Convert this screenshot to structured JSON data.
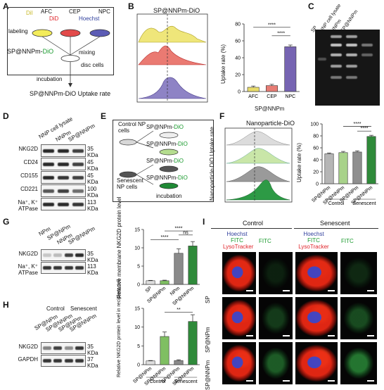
{
  "panels": {
    "A": "A",
    "B": "B",
    "C": "C",
    "D": "D",
    "E": "E",
    "F": "F",
    "G": "G",
    "H": "H",
    "I": "I"
  },
  "panelA": {
    "dyes": [
      "DiI",
      "AFC",
      "DiD",
      "CEP",
      "Hoechst",
      "NPC"
    ],
    "labeling": "labeling",
    "probe_prefix": "SP@NNPm-",
    "probe_suffix": "DiO",
    "mixing": "mixing",
    "disc": "disc cells",
    "incubation": "incubation",
    "result": "SP@NNPm-DiO Uptake rate",
    "colors": {
      "dii": "#d7c93a",
      "did": "#e0242a",
      "hoechst": "#2e3e9c",
      "dio": "#1a9a2e"
    }
  },
  "panelB": {
    "hist_title": "SP@NNPm-DiO",
    "stars": [
      "****",
      "****"
    ]
  },
  "chart_data": [
    {
      "type": "bar",
      "categories": [
        "AFC",
        "CEP",
        "NPC"
      ],
      "values": [
        5,
        7,
        53
      ],
      "errors": [
        1.5,
        1.5,
        2
      ],
      "ylabel": "Uptake rate (%)",
      "xlabel": "SP@NNPm",
      "ylim": [
        0,
        80
      ],
      "yticks": [
        0,
        20,
        40,
        60,
        80
      ],
      "colors": [
        "#e8dc6a",
        "#e77c74",
        "#7664b2"
      ]
    },
    {
      "type": "bar",
      "categories": [
        "SP@NPm",
        "SP@NNPm",
        "SP@NPm",
        "SP@NNPm"
      ],
      "values": [
        50,
        52,
        53,
        79
      ],
      "errors": [
        1.5,
        2,
        2,
        2
      ],
      "ylabel": "Uptake rate (%)",
      "groups": [
        "Control",
        "Senescent"
      ],
      "ylim": [
        0,
        100
      ],
      "yticks": [
        0,
        20,
        40,
        60,
        80,
        100
      ],
      "colors": [
        "#b5b5b5",
        "#a8d28a",
        "#8f8f8f",
        "#2f8a3a"
      ]
    },
    {
      "type": "bar",
      "categories": [
        "SP",
        "SP@NPm",
        "NPm",
        "SP@NNPm"
      ],
      "values": [
        1,
        1,
        8.5,
        10.5
      ],
      "errors": [
        0.1,
        0.15,
        1.2,
        1.2
      ],
      "ylabel": "Relative membrane NKG2D protein level",
      "ylim": [
        0,
        15
      ],
      "yticks": [
        0,
        5,
        10,
        15
      ],
      "colors": [
        "#dddddd",
        "#7fbf62",
        "#8a8a8a",
        "#2f8a3a"
      ]
    },
    {
      "type": "bar",
      "categories": [
        "SP@NPm",
        "SP@NNPm",
        "SP@NPm",
        "SP@NNPm"
      ],
      "values": [
        1,
        7.5,
        1.1,
        11.5
      ],
      "errors": [
        0.1,
        1.2,
        0.2,
        1.8
      ],
      "ylabel": "Relative NKG2D protein level in recipient cell",
      "groups": [
        "Control",
        "Senescent"
      ],
      "ylim": [
        0,
        15
      ],
      "yticks": [
        0,
        5,
        10,
        15
      ],
      "colors": [
        "#dddddd",
        "#7fbf62",
        "#8a8a8a",
        "#2f8a3a"
      ]
    }
  ],
  "panelC": {
    "lanes": [
      "SP",
      "NNP cell lysate",
      "NNPm",
      "SP@NNPm"
    ]
  },
  "panelD": {
    "lanes": [
      "NNP cell lysate",
      "NNPm",
      "SP@NNPm"
    ],
    "rows": [
      {
        "name": "NKG2D",
        "kda": "35 KDa"
      },
      {
        "name": "CD24",
        "kda": "45 KDa"
      },
      {
        "name": "CD155",
        "kda": "45 KDa"
      },
      {
        "name": "CD221",
        "kda": "100 KDa"
      },
      {
        "name": "Na⁺, K⁺ ATPase",
        "kda": "113 KDa"
      }
    ]
  },
  "panelE": {
    "control": "Control NP cells",
    "senescent": "Senescent NP cells",
    "dish_prefix": [
      "SP@NPm-",
      "SP@NNPm-",
      "SP@NPm-",
      "SP@NNPm-"
    ],
    "dio": "DiO",
    "incubation": "incubation",
    "axis": "Nanoparticle-DiO Uptake rate"
  },
  "panelF": {
    "hist_title": "Nanoparticle-DiO",
    "stars": [
      "****",
      "****"
    ]
  },
  "panelG": {
    "lanes": [
      "NPm",
      "SP@NPm",
      "NNPm",
      "SP@NNPm"
    ],
    "rows": [
      {
        "name": "NKG2D",
        "kda": "35 KDa"
      },
      {
        "name": "Na⁺, K⁺ ATPase",
        "kda": "113 KDa"
      }
    ],
    "stars": [
      "****",
      "ns",
      "****"
    ]
  },
  "panelH": {
    "header": [
      "Control",
      "Senescent"
    ],
    "lanes": [
      "SP@NPm",
      "SP@NNPm",
      "SP@NPm",
      "SP@NNPm"
    ],
    "rows": [
      {
        "name": "NKG2D",
        "kda": "35 KDa"
      },
      {
        "name": "GAPDH",
        "kda": "37 KDa"
      }
    ],
    "stars": [
      "**"
    ]
  },
  "panelI": {
    "groups": [
      "Control",
      "Senescent"
    ],
    "stain": [
      "Hoechst",
      "FITC",
      "LysoTracker"
    ],
    "fitc": "FITC",
    "rows": [
      "SP",
      "SP@NPm",
      "SP@NNPm"
    ]
  }
}
